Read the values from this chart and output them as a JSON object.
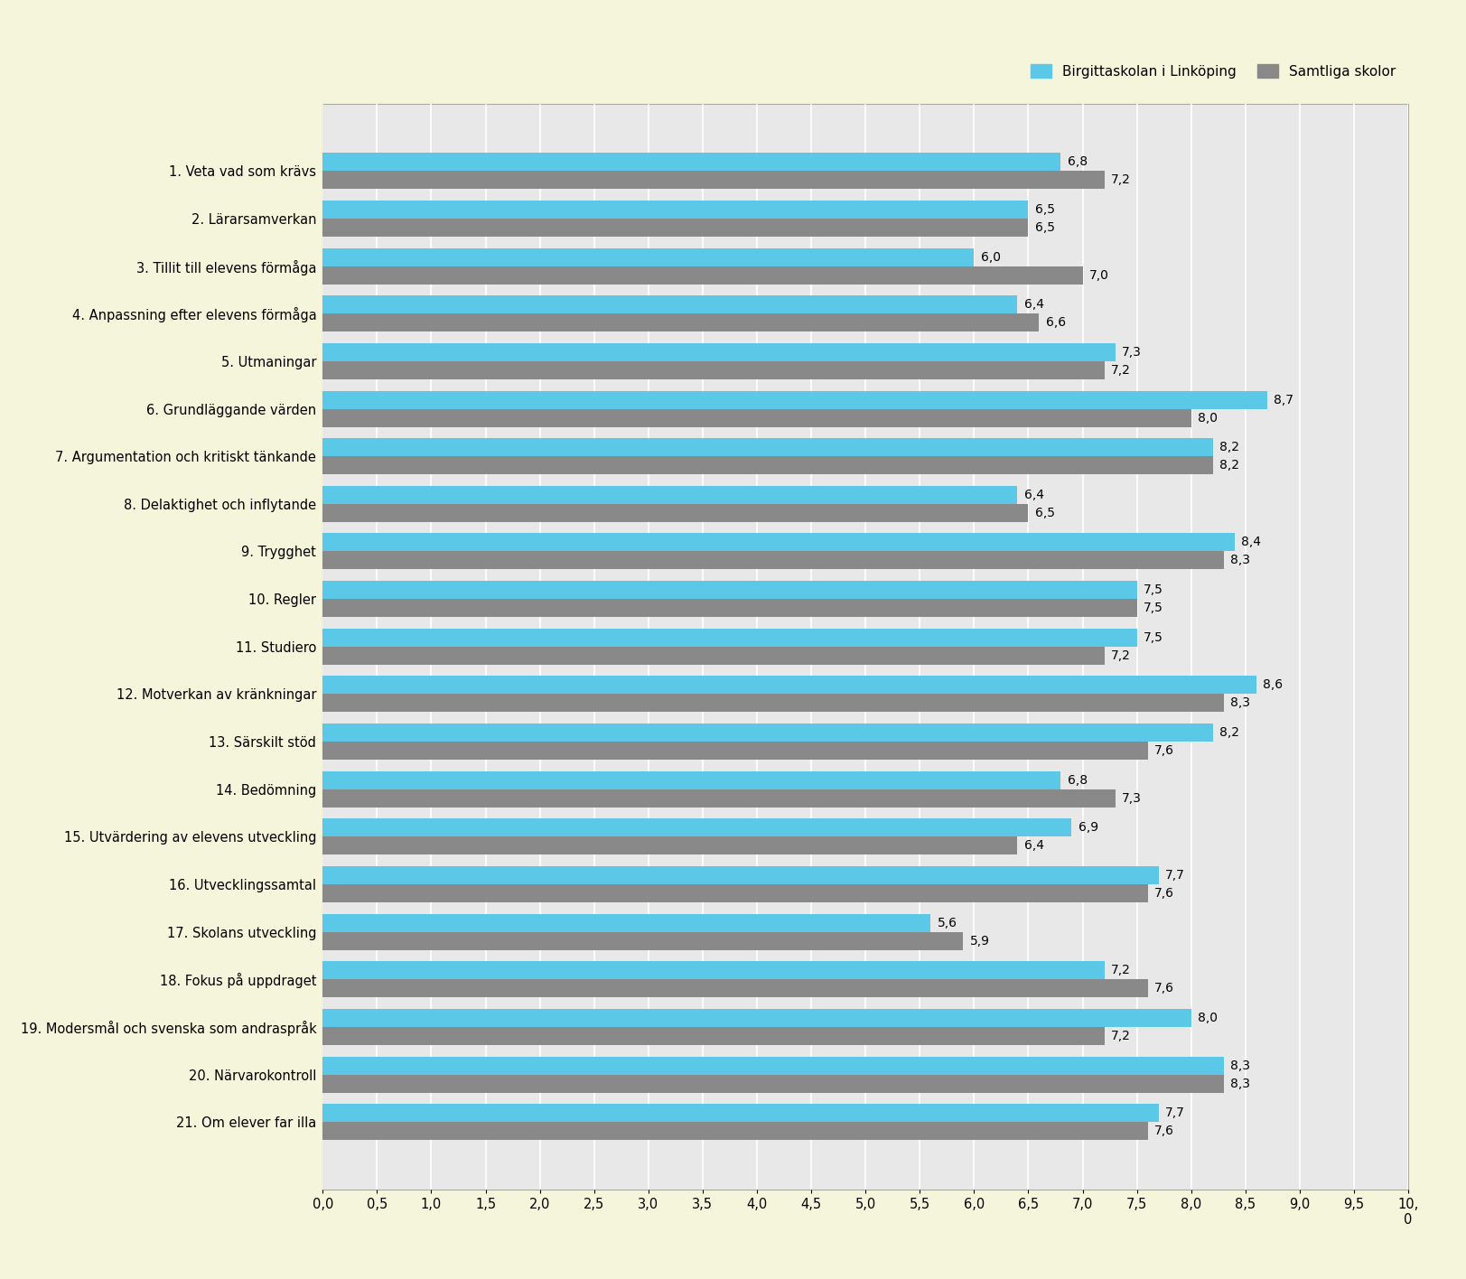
{
  "categories": [
    "1. Veta vad som krävs",
    "2. Lärarsamverkan",
    "3. Tillit till elevens förmåga",
    "4. Anpassning efter elevens förmåga",
    "5. Utmaningar",
    "6. Grundläggande värden",
    "7. Argumentation och kritiskt tänkande",
    "8. Delaktighet och inflytande",
    "9. Trygghet",
    "10. Regler",
    "11. Studiero",
    "12. Motverkan av kränkningar",
    "13. Särskilt stöd",
    "14. Bedömning",
    "15. Utvärdering av elevens utveckling",
    "16. Utvecklingssamtal",
    "17. Skolans utveckling",
    "18. Fokus på uppdraget",
    "19. Modersmål och svenska som andraspråk",
    "20. Närvarokontroll",
    "21. Om elever far illa"
  ],
  "samtliga_values": [
    7.2,
    6.5,
    7.0,
    6.6,
    7.2,
    8.0,
    8.2,
    6.5,
    8.3,
    7.5,
    7.2,
    8.3,
    7.6,
    7.3,
    6.4,
    7.6,
    5.9,
    7.6,
    7.2,
    8.3,
    7.6
  ],
  "birgit_values": [
    6.8,
    6.5,
    6.0,
    6.4,
    7.3,
    8.7,
    8.2,
    6.4,
    8.4,
    7.5,
    7.5,
    8.6,
    8.2,
    6.8,
    6.9,
    7.7,
    5.6,
    7.2,
    8.0,
    8.3,
    7.7
  ],
  "color_birgit": "#5bc8e8",
  "color_samtliga": "#898989",
  "legend_birgit": "Birgittaskolan i Linköping",
  "legend_samtliga": "Samtliga skolor",
  "xlim": [
    0,
    10
  ],
  "xticks": [
    0.0,
    0.5,
    1.0,
    1.5,
    2.0,
    2.5,
    3.0,
    3.5,
    4.0,
    4.5,
    5.0,
    5.5,
    6.0,
    6.5,
    7.0,
    7.5,
    8.0,
    8.5,
    9.0,
    9.5,
    10.0
  ],
  "figure_bg": "#f5f5dc",
  "header_bg": "#f5f5dc",
  "plot_bg": "#e8e8e8",
  "bar_height": 0.38,
  "label_fontsize": 10.5,
  "tick_fontsize": 10.5,
  "value_fontsize": 10,
  "legend_fontsize": 11
}
